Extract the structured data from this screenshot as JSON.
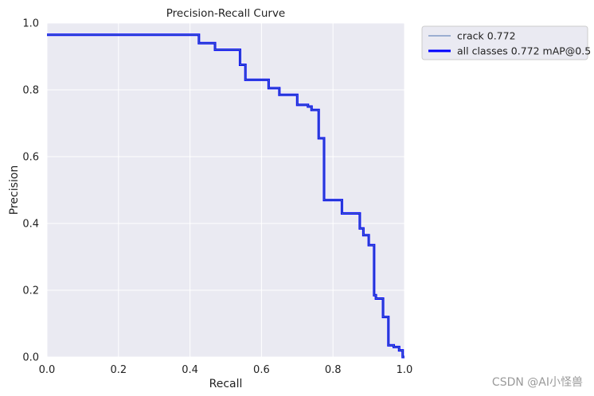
{
  "chart_data": {
    "type": "line",
    "title": "Precision-Recall Curve",
    "xlabel": "Recall",
    "ylabel": "Precision",
    "xlim": [
      0,
      1
    ],
    "ylim": [
      0,
      1
    ],
    "x_ticks": [
      "0.0",
      "0.2",
      "0.4",
      "0.6",
      "0.8",
      "1.0"
    ],
    "y_ticks": [
      "0.0",
      "0.2",
      "0.4",
      "0.6",
      "0.8",
      "1.0"
    ],
    "grid": true,
    "legend_position": "outside-top-right",
    "series": [
      {
        "name": "crack 0.772",
        "color": "#4c72b0",
        "style": "thin",
        "x": [
          0.0,
          0.425,
          0.425,
          0.47,
          0.47,
          0.54,
          0.54,
          0.555,
          0.555,
          0.62,
          0.62,
          0.65,
          0.65,
          0.7,
          0.7,
          0.73,
          0.73,
          0.74,
          0.74,
          0.76,
          0.76,
          0.775,
          0.775,
          0.825,
          0.825,
          0.875,
          0.875,
          0.885,
          0.885,
          0.9,
          0.9,
          0.915,
          0.915,
          0.92,
          0.92,
          0.94,
          0.94,
          0.955,
          0.955,
          0.97,
          0.97,
          0.985,
          0.985,
          0.995,
          0.995,
          1.0
        ],
        "y": [
          0.965,
          0.965,
          0.94,
          0.94,
          0.92,
          0.92,
          0.875,
          0.875,
          0.83,
          0.83,
          0.805,
          0.805,
          0.785,
          0.785,
          0.755,
          0.755,
          0.75,
          0.75,
          0.74,
          0.74,
          0.655,
          0.655,
          0.47,
          0.47,
          0.43,
          0.43,
          0.385,
          0.385,
          0.365,
          0.365,
          0.335,
          0.335,
          0.185,
          0.185,
          0.175,
          0.175,
          0.12,
          0.12,
          0.035,
          0.035,
          0.03,
          0.03,
          0.02,
          0.02,
          0.0,
          0.0
        ]
      },
      {
        "name": "all classes 0.772 mAP@0.5",
        "color": "#0000ff",
        "style": "thick",
        "same_as": 0
      }
    ]
  },
  "watermark": "CSDN @AI小怪兽"
}
